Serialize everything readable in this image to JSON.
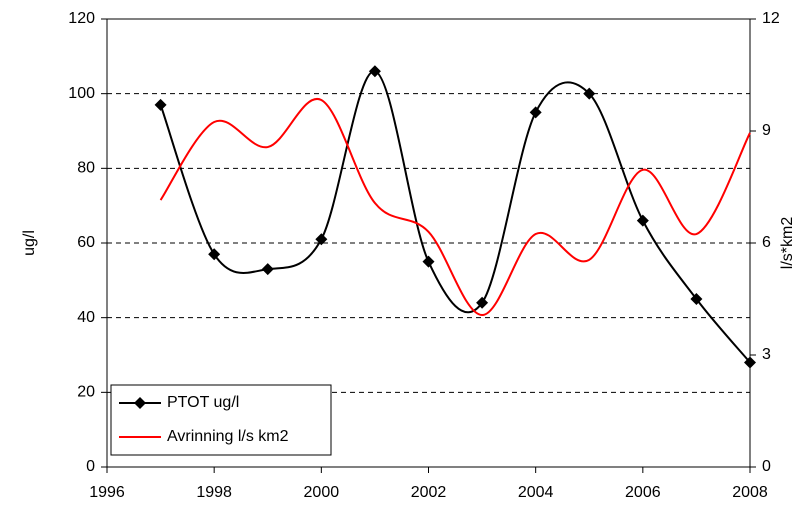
{
  "chart_data": {
    "type": "line",
    "x": [
      1997,
      1998,
      1999,
      2000,
      2001,
      2002,
      2003,
      2004,
      2005,
      2006,
      2007,
      2008
    ],
    "series": [
      {
        "name": "PTOT ug/l",
        "color": "#000000",
        "marker": "diamond",
        "values": [
          97,
          57,
          53,
          61,
          106,
          55,
          44,
          95,
          100,
          66,
          45,
          28
        ]
      },
      {
        "name": "Avrinning l/s km2",
        "color": "#ff0000",
        "axis": "y2",
        "values": [
          7.15,
          9.24,
          8.57,
          9.83,
          7.07,
          6.3,
          4.07,
          6.24,
          5.55,
          7.96,
          6.24,
          8.95
        ]
      }
    ],
    "xlim": [
      1996,
      2008
    ],
    "xticks": [
      1996,
      1998,
      2000,
      2002,
      2004,
      2006,
      2008
    ],
    "ylim": [
      0,
      120
    ],
    "yticks": [
      0,
      20,
      40,
      60,
      80,
      100,
      120
    ],
    "y2lim": [
      0,
      12
    ],
    "y2ticks": [
      0,
      3,
      6,
      9,
      12
    ],
    "ylabel": "ug/l",
    "y2label": "l/s*km2",
    "grid": true,
    "legend": "lower left",
    "smooth": true
  }
}
